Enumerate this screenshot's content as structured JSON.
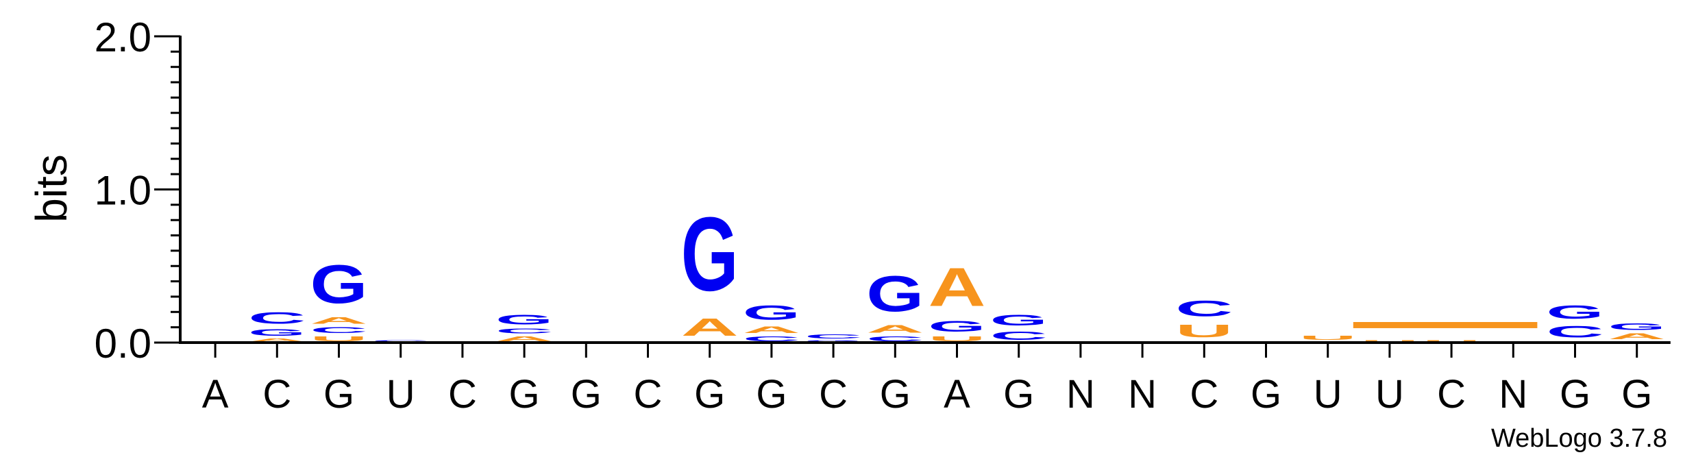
{
  "chart_data": {
    "type": "sequence-logo",
    "ylabel": "bits",
    "ylim": [
      0,
      2.0
    ],
    "yticks": [
      "0.0",
      "1.0",
      "2.0"
    ],
    "grid": false,
    "colors": {
      "A": "#F7941D",
      "C": "#0000F2",
      "G": "#0000F2",
      "U": "#F7941D"
    },
    "positions": [
      {
        "label": "A",
        "stack": []
      },
      {
        "label": "C",
        "stack": [
          {
            "letter": "A",
            "bits": 0.03
          },
          {
            "letter": "G",
            "bits": 0.07
          },
          {
            "letter": "C",
            "bits": 0.12
          }
        ]
      },
      {
        "label": "G",
        "stack": [
          {
            "letter": "U",
            "bits": 0.05
          },
          {
            "letter": "C",
            "bits": 0.06
          },
          {
            "letter": "A",
            "bits": 0.07
          },
          {
            "letter": "G",
            "bits": 0.4
          }
        ]
      },
      {
        "label": "U",
        "stack": [
          {
            "letter": "C",
            "bits": 0.02
          }
        ]
      },
      {
        "label": "C",
        "stack": []
      },
      {
        "label": "G",
        "stack": [
          {
            "letter": "A",
            "bits": 0.05
          },
          {
            "letter": "C",
            "bits": 0.05
          },
          {
            "letter": "G",
            "bits": 0.1
          }
        ]
      },
      {
        "label": "G",
        "stack": []
      },
      {
        "label": "C",
        "stack": []
      },
      {
        "label": "G",
        "stack": [
          {
            "letter": "C",
            "bits": 0.01
          },
          {
            "letter": "A",
            "bits": 0.18
          },
          {
            "letter": "G",
            "bits": 0.77
          }
        ]
      },
      {
        "label": "G",
        "stack": [
          {
            "letter": "C",
            "bits": 0.05
          },
          {
            "letter": "A",
            "bits": 0.07
          },
          {
            "letter": "G",
            "bits": 0.15
          }
        ]
      },
      {
        "label": "C",
        "stack": [
          {
            "letter": "G",
            "bits": 0.02
          },
          {
            "letter": "C",
            "bits": 0.04
          }
        ]
      },
      {
        "label": "G",
        "stack": [
          {
            "letter": "C",
            "bits": 0.05
          },
          {
            "letter": "A",
            "bits": 0.08
          },
          {
            "letter": "G",
            "bits": 0.37
          }
        ]
      },
      {
        "label": "A",
        "stack": [
          {
            "letter": "U",
            "bits": 0.05
          },
          {
            "letter": "G",
            "bits": 0.11
          },
          {
            "letter": "A",
            "bits": 0.4
          }
        ]
      },
      {
        "label": "G",
        "stack": [
          {
            "letter": "C",
            "bits": 0.09
          },
          {
            "letter": "G",
            "bits": 0.11
          }
        ]
      },
      {
        "label": "N",
        "stack": []
      },
      {
        "label": "N",
        "stack": []
      },
      {
        "label": "C",
        "stack": [
          {
            "letter": "A",
            "bits": 0.01
          },
          {
            "letter": "U",
            "bits": 0.13
          },
          {
            "letter": "C",
            "bits": 0.16
          }
        ]
      },
      {
        "label": "G",
        "stack": []
      },
      {
        "label": "U",
        "stack": [
          {
            "letter": "A",
            "bits": 0.01
          },
          {
            "letter": "U",
            "bits": 0.04
          }
        ]
      },
      {
        "label": "U",
        "stack": [
          {
            "letter": "U",
            "bits": 0.02
          }
        ]
      },
      {
        "label": "C",
        "stack": [
          {
            "letter": "U",
            "bits": 0.02
          }
        ]
      },
      {
        "label": "N",
        "stack": []
      },
      {
        "label": "G",
        "stack": [
          {
            "letter": "U",
            "bits": 0.01
          },
          {
            "letter": "C",
            "bits": 0.12
          },
          {
            "letter": "G",
            "bits": 0.14
          }
        ]
      },
      {
        "label": "G",
        "stack": [
          {
            "letter": "C",
            "bits": 0.01
          },
          {
            "letter": "A",
            "bits": 0.06
          },
          {
            "letter": "G",
            "bits": 0.07
          }
        ]
      }
    ],
    "underline_bar": {
      "from_position": 19,
      "to_position": 21,
      "bits": 0.04,
      "color": "#F7941D"
    },
    "credit": "WebLogo 3.7.8"
  }
}
